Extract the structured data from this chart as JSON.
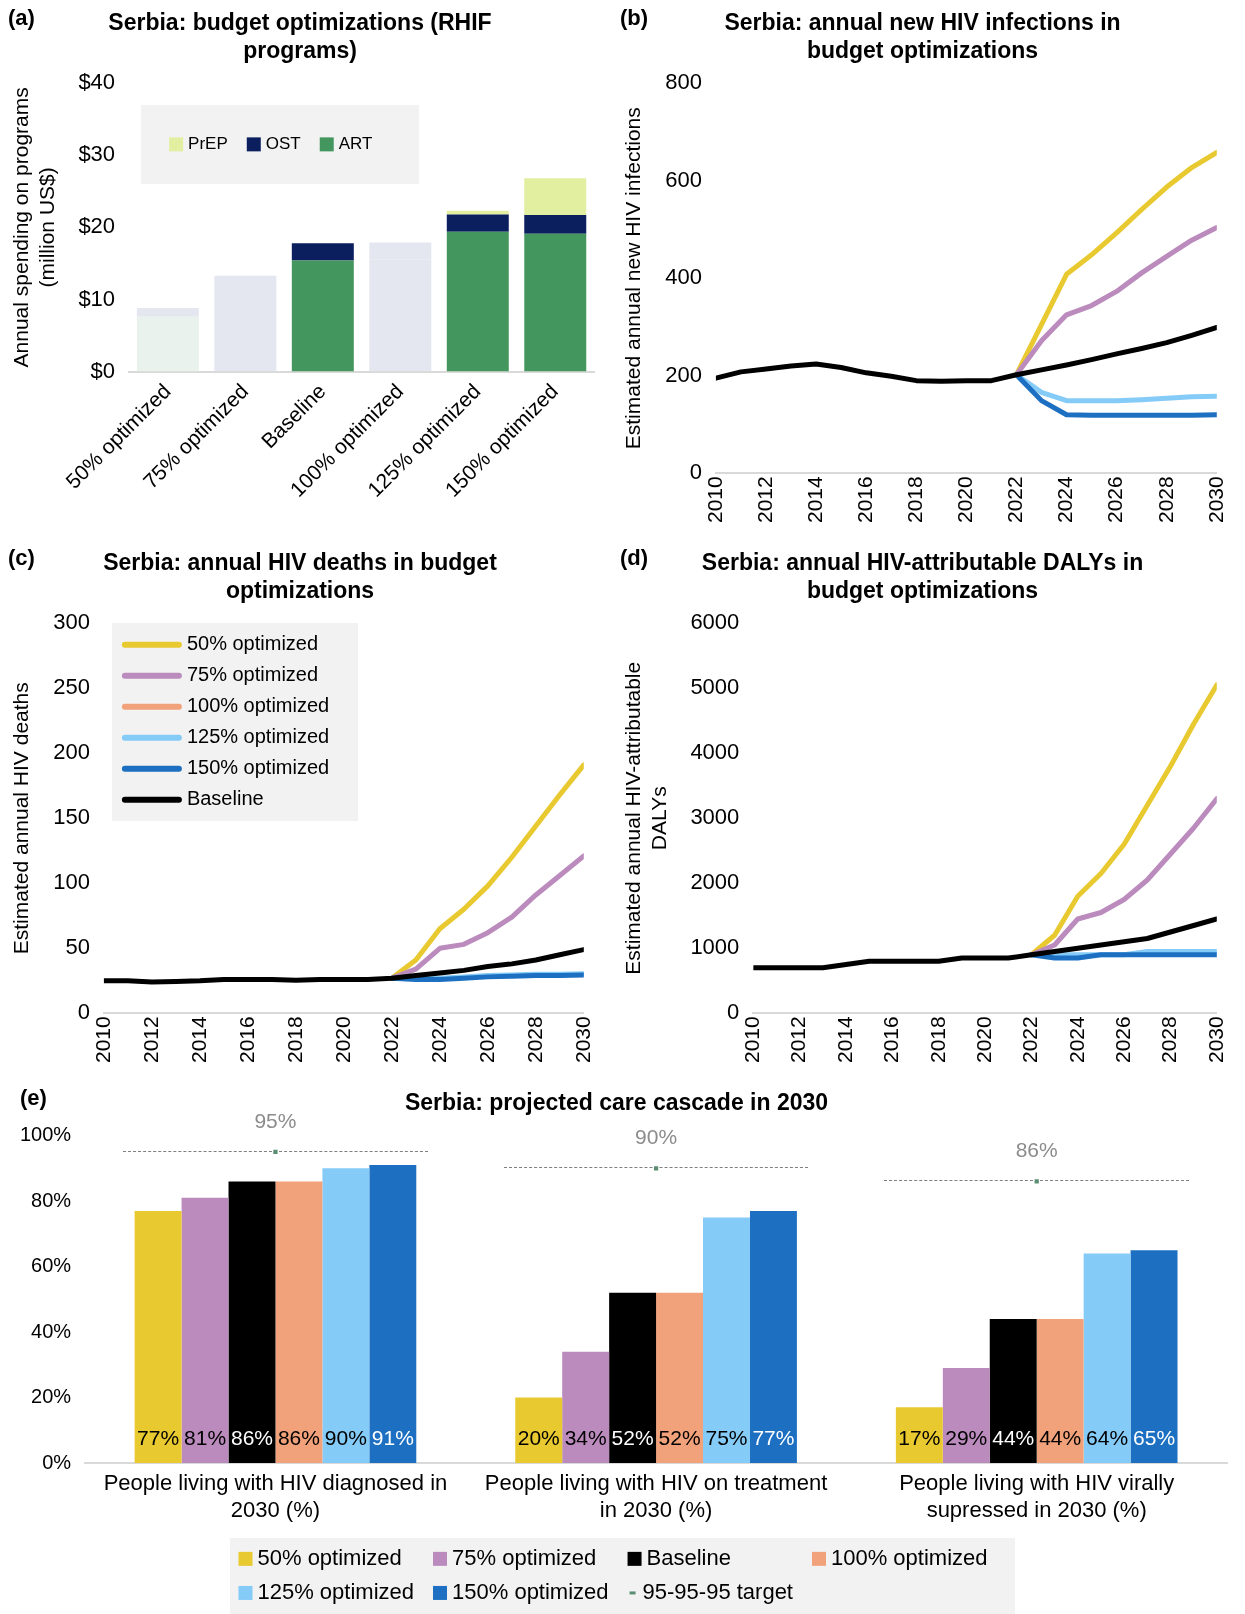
{
  "chart_data": [
    {
      "type": "bar",
      "title": "Serbia: budget optimizations (RHIF programs)",
      "ylabel": "Annual spending on programs (million US$)",
      "annotations": [
        "(a)"
      ],
      "categories": [
        "50% optimized",
        "75% optimized",
        "Baseline",
        "100% optimized",
        "125% optimized",
        "150% optimized"
      ],
      "stacked": true,
      "legend": "top left",
      "ylim": [
        0,
        40
      ],
      "yticks": [
        {
          "value": 0,
          "label": "$0"
        },
        {
          "value": 10,
          "label": "$10"
        },
        {
          "value": 20,
          "label": "$20"
        },
        {
          "value": 30,
          "label": "$30"
        },
        {
          "value": 40,
          "label": "$40"
        }
      ],
      "series": [
        {
          "name": "ART",
          "color": "#43965e",
          "colors": [
            "#e9f2ec",
            "#e4e7ef",
            "#43965e",
            "#e4e7ef",
            "#43965e",
            "#43965e"
          ],
          "values": [
            7.6,
            11.6,
            15.4,
            15.5,
            19.4,
            19.1
          ]
        },
        {
          "name": "OST",
          "color": "#0b1f5f",
          "colors": [
            "#e4e7ef",
            "#e4e7ef",
            "#0b1f5f",
            "#e4e7ef",
            "#0b1f5f",
            "#0b1f5f"
          ],
          "values": [
            1.2,
            1.7,
            2.4,
            2.4,
            2.4,
            2.6
          ]
        },
        {
          "name": "PrEP",
          "color": "#e2efa0",
          "values": [
            0,
            0,
            0,
            0,
            0.5,
            5.1
          ]
        }
      ]
    },
    {
      "type": "line",
      "title": "Serbia: annual new HIV infections in budget optimizations",
      "ylabel": "Estimated annual new HIV infections",
      "annotations": [
        "(b)"
      ],
      "x": [
        2010,
        2011,
        2012,
        2013,
        2014,
        2015,
        2016,
        2017,
        2018,
        2019,
        2020,
        2021,
        2022,
        2023,
        2024,
        2025,
        2026,
        2027,
        2028,
        2029,
        2030
      ],
      "xlim": [
        2010,
        2030
      ],
      "xticks": [
        2010,
        2012,
        2014,
        2016,
        2018,
        2020,
        2022,
        2024,
        2026,
        2028,
        2030
      ],
      "ylim": [
        0,
        800
      ],
      "yticks": [
        0,
        200,
        400,
        600,
        800
      ],
      "series": [
        {
          "color": "#e8c930",
          "values": [
            null,
            null,
            null,
            null,
            null,
            null,
            null,
            null,
            null,
            null,
            null,
            null,
            202,
            305,
            408,
            448,
            493,
            541,
            587,
            627,
            658
          ]
        },
        {
          "color": "#bb8bbd",
          "values": [
            null,
            null,
            null,
            null,
            null,
            null,
            null,
            null,
            null,
            null,
            null,
            null,
            202,
            272,
            325,
            344,
            373,
            411,
            445,
            478,
            504
          ]
        },
        {
          "color": "#85cbf8",
          "values": [
            null,
            null,
            null,
            null,
            null,
            null,
            null,
            null,
            null,
            null,
            null,
            null,
            202,
            166,
            149,
            149,
            149,
            151,
            154,
            157,
            158
          ]
        },
        {
          "color": "#1c6fc1",
          "values": [
            null,
            null,
            null,
            null,
            null,
            null,
            null,
            null,
            null,
            null,
            null,
            null,
            202,
            149,
            120,
            119,
            119,
            119,
            119,
            119,
            120
          ]
        },
        {
          "color": "#000000",
          "values": [
            195,
            208,
            214,
            220,
            224,
            217,
            206,
            199,
            190,
            189,
            190,
            190,
            202,
            212,
            222,
            233,
            245,
            256,
            268,
            283,
            299
          ]
        }
      ]
    },
    {
      "type": "line",
      "title": "Serbia: annual HIV deaths in budget optimizations",
      "ylabel": "Estimated annual HIV deaths",
      "annotations": [
        "(c)"
      ],
      "legend": "top left",
      "x": [
        2010,
        2011,
        2012,
        2013,
        2014,
        2015,
        2016,
        2017,
        2018,
        2019,
        2020,
        2021,
        2022,
        2023,
        2024,
        2025,
        2026,
        2027,
        2028,
        2029,
        2030
      ],
      "xlim": [
        2010,
        2030
      ],
      "xticks": [
        2010,
        2012,
        2014,
        2016,
        2018,
        2020,
        2022,
        2024,
        2026,
        2028,
        2030
      ],
      "ylim": [
        0,
        300
      ],
      "yticks": [
        0,
        50,
        100,
        150,
        200,
        250,
        300
      ],
      "series": [
        {
          "name": "50% optimized",
          "color": "#e8c930",
          "values": [
            null,
            null,
            null,
            null,
            null,
            null,
            null,
            null,
            null,
            null,
            null,
            null,
            27,
            41,
            65,
            80,
            98,
            120,
            144,
            168,
            191
          ]
        },
        {
          "name": "75% optimized",
          "color": "#bb8bbd",
          "values": [
            null,
            null,
            null,
            null,
            null,
            null,
            null,
            null,
            null,
            null,
            null,
            null,
            27,
            34,
            50,
            53,
            62,
            74,
            91,
            106,
            121
          ]
        },
        {
          "name": "100% optimized",
          "color": "#f2a27a",
          "values": [
            null,
            null,
            null,
            null,
            null,
            null,
            null,
            null,
            null,
            null,
            null,
            null,
            null,
            null,
            null,
            null,
            null,
            null,
            null,
            null,
            null
          ]
        },
        {
          "name": "125% optimized",
          "color": "#85cbf8",
          "values": [
            null,
            null,
            null,
            null,
            null,
            null,
            null,
            null,
            null,
            null,
            null,
            null,
            null,
            27,
            27,
            28,
            29,
            29.5,
            30,
            30,
            30.5
          ]
        },
        {
          "name": "150% optimized",
          "color": "#1c6fc1",
          "values": [
            null,
            null,
            null,
            null,
            null,
            null,
            null,
            null,
            null,
            null,
            null,
            null,
            27,
            26,
            26,
            27,
            28,
            28.5,
            29,
            29,
            29.5
          ]
        },
        {
          "name": "Baseline",
          "color": "#000000",
          "values": [
            25,
            25,
            24,
            24.5,
            25,
            26,
            26,
            26,
            25.5,
            26,
            26,
            26,
            27,
            29,
            31,
            33,
            36,
            38,
            41,
            45,
            49
          ]
        }
      ]
    },
    {
      "type": "line",
      "title": "Serbia: annual HIV-attributable DALYs in budget optimizations",
      "ylabel": "Estimated annual HIV-attributable DALYs",
      "annotations": [
        "(d)"
      ],
      "x": [
        2010,
        2011,
        2012,
        2013,
        2014,
        2015,
        2016,
        2017,
        2018,
        2019,
        2020,
        2021,
        2022,
        2023,
        2024,
        2025,
        2026,
        2027,
        2028,
        2029,
        2030
      ],
      "xlim": [
        2010,
        2030
      ],
      "xticks": [
        2010,
        2012,
        2014,
        2016,
        2018,
        2020,
        2022,
        2024,
        2026,
        2028,
        2030
      ],
      "ylim": [
        0,
        6000
      ],
      "yticks": [
        0,
        1000,
        2000,
        3000,
        4000,
        5000,
        6000
      ],
      "series": [
        {
          "color": "#e8c930",
          "values": [
            null,
            null,
            null,
            null,
            null,
            null,
            null,
            null,
            null,
            null,
            null,
            null,
            900,
            1200,
            1800,
            2150,
            2600,
            3200,
            3800,
            4450,
            5050
          ]
        },
        {
          "color": "#bb8bbd",
          "values": [
            null,
            null,
            null,
            null,
            null,
            null,
            null,
            null,
            null,
            null,
            null,
            null,
            900,
            1050,
            1450,
            1550,
            1750,
            2050,
            2450,
            2850,
            3300
          ]
        },
        {
          "color": "#85cbf8",
          "values": [
            null,
            null,
            null,
            null,
            null,
            null,
            null,
            null,
            null,
            null,
            null,
            null,
            900,
            900,
            900,
            900,
            900,
            950,
            950,
            950,
            950
          ]
        },
        {
          "color": "#1c6fc1",
          "values": [
            null,
            null,
            null,
            null,
            null,
            null,
            null,
            null,
            null,
            null,
            null,
            null,
            900,
            850,
            850,
            900,
            900,
            900,
            900,
            900,
            900
          ]
        },
        {
          "color": "#000000",
          "values": [
            700,
            700,
            700,
            700,
            750,
            800,
            800,
            800,
            800,
            850,
            850,
            850,
            900,
            950,
            1000,
            1050,
            1100,
            1150,
            1250,
            1350,
            1450
          ]
        }
      ]
    },
    {
      "type": "bar",
      "title": "Serbia: projected care cascade in 2030",
      "annotations": [
        "(e)"
      ],
      "legend": "bottom",
      "categories": [
        "People living with HIV diagnosed in 2030 (%)",
        "People living with HIV on treatment in 2030 (%)",
        "People living with HIV virally supressed in 2030 (%)"
      ],
      "ylim": [
        0,
        100
      ],
      "yticks": [
        {
          "value": 0,
          "label": "0%"
        },
        {
          "value": 20,
          "label": "20%"
        },
        {
          "value": 40,
          "label": "40%"
        },
        {
          "value": 60,
          "label": "60%"
        },
        {
          "value": 80,
          "label": "80%"
        },
        {
          "value": 100,
          "label": "100%"
        }
      ],
      "series": [
        {
          "name": "50% optimized",
          "color": "#e8c930",
          "values": [
            77,
            20,
            17
          ],
          "value_labels": [
            "77%",
            "20%",
            "17%"
          ]
        },
        {
          "name": "75% optimized",
          "color": "#bb8bbd",
          "values": [
            81,
            34,
            29
          ],
          "value_labels": [
            "81%",
            "34%",
            "29%"
          ]
        },
        {
          "name": "Baseline",
          "color": "#000000",
          "values": [
            86,
            52,
            44
          ],
          "value_labels": [
            "86%",
            "52%",
            "44%"
          ]
        },
        {
          "name": "100% optimized",
          "color": "#f2a27a",
          "values": [
            86,
            52,
            44
          ],
          "value_labels": [
            "86%",
            "52%",
            "44%"
          ]
        },
        {
          "name": "125% optimized",
          "color": "#85cbf8",
          "values": [
            90,
            75,
            64
          ],
          "value_labels": [
            "90%",
            "75%",
            "64%"
          ]
        },
        {
          "name": "150% optimized",
          "color": "#1c6fc1",
          "values": [
            91,
            77,
            65
          ],
          "value_labels": [
            "91%",
            "77%",
            "65%"
          ]
        },
        {
          "name": "95-95-95 target",
          "type": "scatter",
          "color": "#5b8f73",
          "line_style": "dashed",
          "values": [
            95,
            90,
            86
          ],
          "value_labels": [
            "95%",
            "90%",
            "86%"
          ]
        }
      ]
    }
  ]
}
